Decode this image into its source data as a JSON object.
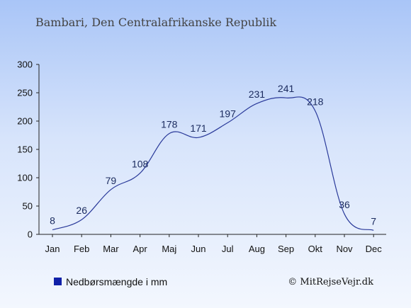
{
  "chart_data": {
    "type": "line",
    "title": "Bambari, Den Centralafrikanske Republik",
    "categories": [
      "Jan",
      "Feb",
      "Mar",
      "Apr",
      "Maj",
      "Jun",
      "Jul",
      "Aug",
      "Sep",
      "Okt",
      "Nov",
      "Dec"
    ],
    "series": [
      {
        "name": "Nedbørsmængde i mm",
        "values": [
          8,
          26,
          79,
          108,
          178,
          171,
          197,
          231,
          241,
          218,
          36,
          7
        ]
      }
    ],
    "y_ticks": [
      0,
      50,
      100,
      150,
      200,
      250,
      300
    ],
    "ylim": [
      0,
      300
    ],
    "grid": false,
    "legend_position": "bottom-left",
    "line_color": "#2a3a9a",
    "legend_color": "#1020a8"
  },
  "credit": "© MitRejseVejr.dk"
}
